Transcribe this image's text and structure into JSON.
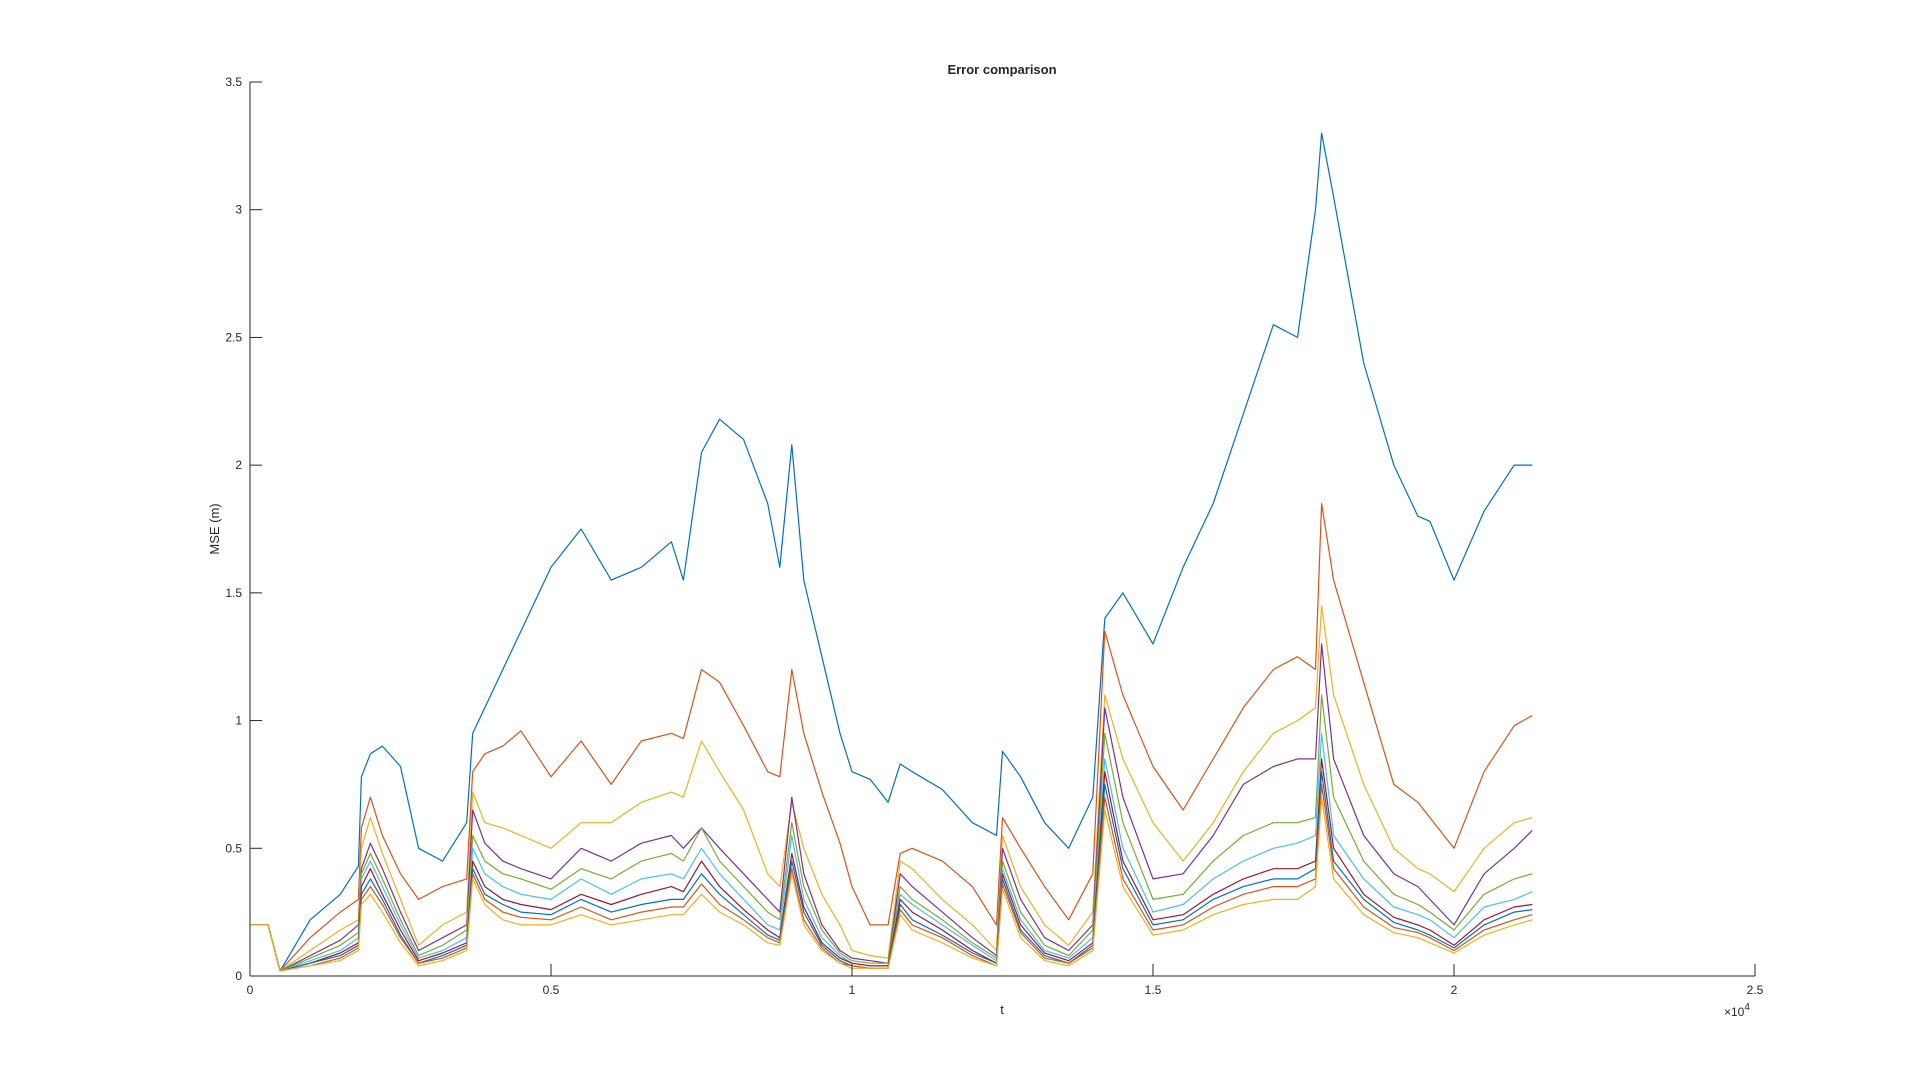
{
  "chart_data": {
    "type": "line",
    "title": "Error comparison",
    "xlabel": "t",
    "ylabel": "MSE (m)",
    "x_multiplier_label": "×10",
    "x_multiplier_exponent": "4",
    "xlim": [
      0,
      2.5
    ],
    "ylim": [
      0,
      3.5
    ],
    "xticks": [
      0,
      0.5,
      1,
      1.5,
      2,
      2.5
    ],
    "xtick_labels": [
      "0",
      "0.5",
      "1",
      "1.5",
      "2",
      "2.5"
    ],
    "yticks": [
      0,
      0.5,
      1,
      1.5,
      2,
      2.5,
      3,
      3.5
    ],
    "ytick_labels": [
      "0",
      "0.5",
      "1",
      "1.5",
      "2",
      "2.5",
      "3",
      "3.5"
    ],
    "grid": false,
    "legend": "none",
    "x": [
      0,
      0.03,
      0.05,
      0.1,
      0.15,
      0.18,
      0.185,
      0.2,
      0.22,
      0.25,
      0.28,
      0.32,
      0.36,
      0.37,
      0.39,
      0.42,
      0.45,
      0.5,
      0.55,
      0.6,
      0.65,
      0.7,
      0.72,
      0.75,
      0.78,
      0.82,
      0.86,
      0.88,
      0.9,
      0.92,
      0.95,
      0.98,
      1.0,
      1.03,
      1.06,
      1.08,
      1.1,
      1.15,
      1.2,
      1.24,
      1.25,
      1.28,
      1.32,
      1.36,
      1.4,
      1.42,
      1.45,
      1.5,
      1.55,
      1.6,
      1.65,
      1.7,
      1.74,
      1.77,
      1.78,
      1.8,
      1.85,
      1.9,
      1.94,
      1.96,
      2.0,
      2.05,
      2.1,
      2.13
    ],
    "series": [
      {
        "color": "#0072BD",
        "values": [
          0.2,
          0.2,
          0.02,
          0.22,
          0.32,
          0.43,
          0.78,
          0.87,
          0.9,
          0.82,
          0.5,
          0.45,
          0.6,
          0.95,
          1.05,
          1.2,
          1.35,
          1.6,
          1.75,
          1.55,
          1.6,
          1.7,
          1.55,
          2.05,
          2.18,
          2.1,
          1.85,
          1.6,
          2.08,
          1.55,
          1.25,
          0.95,
          0.8,
          0.77,
          0.68,
          0.83,
          0.8,
          0.73,
          0.6,
          0.55,
          0.88,
          0.78,
          0.6,
          0.5,
          0.7,
          1.4,
          1.5,
          1.3,
          1.6,
          1.85,
          2.2,
          2.55,
          2.5,
          3.0,
          3.3,
          3.05,
          2.4,
          2.0,
          1.8,
          1.78,
          1.55,
          1.82,
          2.0,
          2.0
        ]
      },
      {
        "color": "#D95319",
        "values": [
          0.2,
          0.2,
          0.02,
          0.15,
          0.25,
          0.3,
          0.58,
          0.7,
          0.55,
          0.4,
          0.3,
          0.35,
          0.38,
          0.8,
          0.87,
          0.9,
          0.96,
          0.78,
          0.92,
          0.75,
          0.92,
          0.95,
          0.93,
          1.2,
          1.15,
          0.98,
          0.8,
          0.78,
          1.2,
          0.95,
          0.72,
          0.52,
          0.35,
          0.2,
          0.2,
          0.48,
          0.5,
          0.45,
          0.35,
          0.2,
          0.62,
          0.5,
          0.35,
          0.22,
          0.4,
          1.35,
          1.1,
          0.82,
          0.65,
          0.85,
          1.05,
          1.2,
          1.25,
          1.2,
          1.85,
          1.55,
          1.15,
          0.75,
          0.68,
          0.62,
          0.5,
          0.8,
          0.98,
          1.02
        ]
      },
      {
        "color": "#EDB120",
        "values": [
          0.2,
          0.2,
          0.02,
          0.1,
          0.18,
          0.22,
          0.5,
          0.62,
          0.48,
          0.3,
          0.12,
          0.2,
          0.25,
          0.72,
          0.6,
          0.58,
          0.55,
          0.5,
          0.6,
          0.6,
          0.68,
          0.72,
          0.7,
          0.92,
          0.8,
          0.65,
          0.4,
          0.35,
          0.68,
          0.5,
          0.32,
          0.2,
          0.1,
          0.08,
          0.07,
          0.45,
          0.42,
          0.3,
          0.2,
          0.1,
          0.55,
          0.35,
          0.2,
          0.12,
          0.25,
          1.1,
          0.85,
          0.6,
          0.45,
          0.6,
          0.8,
          0.95,
          1.0,
          1.05,
          1.45,
          1.1,
          0.75,
          0.5,
          0.42,
          0.4,
          0.33,
          0.5,
          0.6,
          0.62
        ]
      },
      {
        "color": "#7E2F8E",
        "values": [
          0.2,
          0.2,
          0.02,
          0.08,
          0.14,
          0.2,
          0.42,
          0.52,
          0.42,
          0.25,
          0.1,
          0.15,
          0.2,
          0.65,
          0.52,
          0.45,
          0.42,
          0.38,
          0.5,
          0.45,
          0.52,
          0.55,
          0.5,
          0.58,
          0.5,
          0.4,
          0.3,
          0.25,
          0.7,
          0.4,
          0.2,
          0.1,
          0.07,
          0.06,
          0.05,
          0.4,
          0.35,
          0.25,
          0.15,
          0.08,
          0.5,
          0.3,
          0.15,
          0.1,
          0.2,
          1.05,
          0.7,
          0.38,
          0.4,
          0.55,
          0.75,
          0.82,
          0.85,
          0.85,
          1.3,
          0.85,
          0.55,
          0.4,
          0.35,
          0.3,
          0.2,
          0.4,
          0.5,
          0.57
        ]
      },
      {
        "color": "#77AC30",
        "values": [
          0.2,
          0.2,
          0.02,
          0.07,
          0.12,
          0.17,
          0.4,
          0.48,
          0.38,
          0.22,
          0.08,
          0.12,
          0.18,
          0.55,
          0.45,
          0.4,
          0.38,
          0.34,
          0.42,
          0.38,
          0.45,
          0.48,
          0.45,
          0.58,
          0.45,
          0.35,
          0.25,
          0.22,
          0.6,
          0.35,
          0.18,
          0.09,
          0.06,
          0.05,
          0.05,
          0.35,
          0.3,
          0.22,
          0.13,
          0.07,
          0.45,
          0.25,
          0.12,
          0.08,
          0.18,
          0.95,
          0.6,
          0.3,
          0.32,
          0.45,
          0.55,
          0.6,
          0.6,
          0.62,
          1.1,
          0.7,
          0.45,
          0.32,
          0.28,
          0.25,
          0.18,
          0.32,
          0.38,
          0.4
        ]
      },
      {
        "color": "#4DBEEE",
        "values": [
          0.2,
          0.2,
          0.02,
          0.06,
          0.1,
          0.15,
          0.38,
          0.45,
          0.35,
          0.2,
          0.07,
          0.1,
          0.15,
          0.5,
          0.4,
          0.35,
          0.32,
          0.3,
          0.38,
          0.32,
          0.38,
          0.4,
          0.38,
          0.5,
          0.4,
          0.3,
          0.2,
          0.18,
          0.55,
          0.3,
          0.15,
          0.08,
          0.05,
          0.04,
          0.04,
          0.32,
          0.28,
          0.2,
          0.12,
          0.06,
          0.42,
          0.22,
          0.1,
          0.07,
          0.15,
          0.85,
          0.5,
          0.25,
          0.28,
          0.38,
          0.45,
          0.5,
          0.52,
          0.55,
          0.95,
          0.55,
          0.38,
          0.27,
          0.24,
          0.22,
          0.15,
          0.27,
          0.3,
          0.33
        ]
      },
      {
        "color": "#A2142F",
        "values": [
          0.2,
          0.2,
          0.02,
          0.05,
          0.09,
          0.13,
          0.35,
          0.42,
          0.32,
          0.18,
          0.06,
          0.09,
          0.13,
          0.45,
          0.35,
          0.3,
          0.28,
          0.26,
          0.32,
          0.28,
          0.32,
          0.35,
          0.33,
          0.45,
          0.35,
          0.26,
          0.18,
          0.15,
          0.48,
          0.27,
          0.13,
          0.07,
          0.05,
          0.04,
          0.04,
          0.3,
          0.25,
          0.18,
          0.1,
          0.05,
          0.4,
          0.2,
          0.09,
          0.06,
          0.13,
          0.8,
          0.45,
          0.22,
          0.24,
          0.32,
          0.38,
          0.42,
          0.42,
          0.45,
          0.85,
          0.5,
          0.32,
          0.23,
          0.2,
          0.18,
          0.12,
          0.22,
          0.27,
          0.28
        ]
      },
      {
        "color": "#0072BD",
        "values": [
          0.2,
          0.2,
          0.02,
          0.05,
          0.08,
          0.12,
          0.32,
          0.38,
          0.3,
          0.16,
          0.05,
          0.08,
          0.12,
          0.42,
          0.32,
          0.28,
          0.25,
          0.24,
          0.3,
          0.25,
          0.28,
          0.3,
          0.3,
          0.4,
          0.32,
          0.24,
          0.16,
          0.14,
          0.45,
          0.25,
          0.12,
          0.06,
          0.04,
          0.03,
          0.03,
          0.28,
          0.22,
          0.16,
          0.09,
          0.05,
          0.38,
          0.18,
          0.08,
          0.05,
          0.12,
          0.75,
          0.42,
          0.2,
          0.22,
          0.3,
          0.35,
          0.38,
          0.38,
          0.42,
          0.8,
          0.45,
          0.3,
          0.21,
          0.18,
          0.16,
          0.11,
          0.2,
          0.25,
          0.26
        ]
      },
      {
        "color": "#D95319",
        "values": [
          0.2,
          0.2,
          0.02,
          0.04,
          0.07,
          0.11,
          0.3,
          0.35,
          0.28,
          0.15,
          0.05,
          0.07,
          0.11,
          0.4,
          0.3,
          0.25,
          0.23,
          0.22,
          0.27,
          0.22,
          0.25,
          0.27,
          0.27,
          0.36,
          0.28,
          0.22,
          0.15,
          0.13,
          0.42,
          0.22,
          0.11,
          0.05,
          0.04,
          0.03,
          0.03,
          0.26,
          0.2,
          0.15,
          0.08,
          0.04,
          0.36,
          0.17,
          0.07,
          0.05,
          0.11,
          0.7,
          0.38,
          0.18,
          0.2,
          0.27,
          0.32,
          0.35,
          0.35,
          0.38,
          0.75,
          0.42,
          0.27,
          0.19,
          0.17,
          0.15,
          0.1,
          0.18,
          0.22,
          0.24
        ]
      },
      {
        "color": "#EDB120",
        "values": [
          0.2,
          0.2,
          0.02,
          0.04,
          0.06,
          0.1,
          0.28,
          0.32,
          0.25,
          0.13,
          0.04,
          0.06,
          0.1,
          0.38,
          0.28,
          0.22,
          0.2,
          0.2,
          0.24,
          0.2,
          0.22,
          0.24,
          0.24,
          0.32,
          0.25,
          0.2,
          0.13,
          0.12,
          0.4,
          0.2,
          0.1,
          0.05,
          0.03,
          0.03,
          0.03,
          0.24,
          0.18,
          0.13,
          0.07,
          0.04,
          0.34,
          0.15,
          0.06,
          0.04,
          0.1,
          0.65,
          0.35,
          0.16,
          0.18,
          0.24,
          0.28,
          0.3,
          0.3,
          0.35,
          0.7,
          0.38,
          0.24,
          0.17,
          0.15,
          0.13,
          0.09,
          0.16,
          0.2,
          0.22
        ]
      }
    ]
  }
}
